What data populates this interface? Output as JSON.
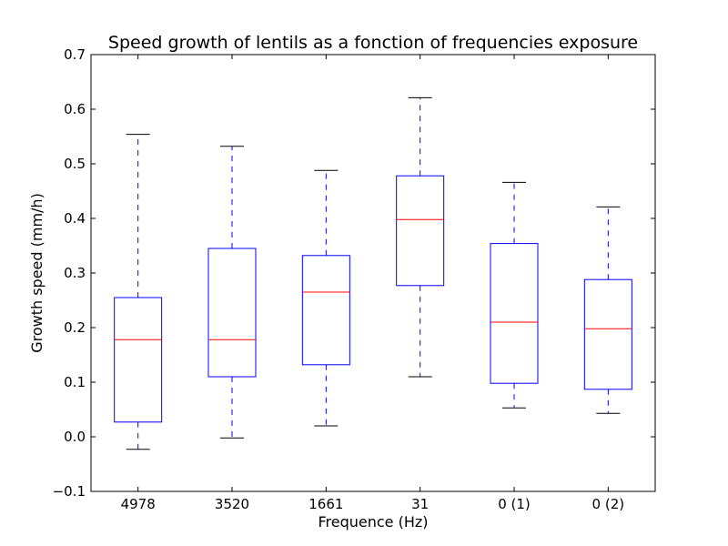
{
  "chart_data": {
    "type": "boxplot",
    "title": "Speed growth of lentils as a fonction of frequencies exposure",
    "xlabel": "Frequence (Hz)",
    "ylabel": "Growth speed (mm/h)",
    "ylim": [
      -0.1,
      0.7
    ],
    "yticks": [
      -0.1,
      0.0,
      0.1,
      0.2,
      0.3,
      0.4,
      0.5,
      0.6,
      0.7
    ],
    "ytick_labels": [
      "−0.1",
      "0.0",
      "0.1",
      "0.2",
      "0.3",
      "0.4",
      "0.5",
      "0.6",
      "0.7"
    ],
    "categories": [
      "4978",
      "3520",
      "1661",
      "31",
      "0 (1)",
      "0 (2)"
    ],
    "boxes": [
      {
        "whisker_low": -0.023,
        "q1": 0.027,
        "median": 0.178,
        "q3": 0.255,
        "whisker_high": 0.554
      },
      {
        "whisker_low": -0.002,
        "q1": 0.11,
        "median": 0.178,
        "q3": 0.345,
        "whisker_high": 0.532
      },
      {
        "whisker_low": 0.02,
        "q1": 0.132,
        "median": 0.265,
        "q3": 0.332,
        "whisker_high": 0.488
      },
      {
        "whisker_low": 0.11,
        "q1": 0.277,
        "median": 0.398,
        "q3": 0.478,
        "whisker_high": 0.621
      },
      {
        "whisker_low": 0.053,
        "q1": 0.098,
        "median": 0.21,
        "q3": 0.354,
        "whisker_high": 0.466
      },
      {
        "whisker_low": 0.043,
        "q1": 0.087,
        "median": 0.198,
        "q3": 0.288,
        "whisker_high": 0.421
      }
    ],
    "colors": {
      "box": "#0000ff",
      "median": "#ff0000",
      "cap": "#000000",
      "axes": "#000000"
    },
    "grid": false
  }
}
